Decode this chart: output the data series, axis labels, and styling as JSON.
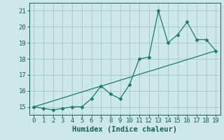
{
  "x": [
    0,
    1,
    2,
    3,
    4,
    5,
    6,
    7,
    8,
    9,
    10,
    11,
    12,
    13,
    14,
    15,
    16,
    17,
    18,
    19
  ],
  "y_main": [
    15.0,
    14.9,
    14.8,
    14.9,
    15.0,
    15.0,
    15.5,
    16.3,
    15.8,
    15.5,
    16.4,
    18.0,
    18.1,
    21.0,
    19.0,
    19.5,
    20.3,
    19.2,
    19.2,
    18.5
  ],
  "y_trend": [
    15.0,
    15.18,
    15.37,
    15.55,
    15.74,
    15.92,
    16.11,
    16.29,
    16.47,
    16.66,
    16.84,
    17.03,
    17.21,
    17.39,
    17.58,
    17.76,
    17.95,
    18.13,
    18.32,
    18.5
  ],
  "line_color": "#1a7a6e",
  "marker": "D",
  "markersize": 2.5,
  "xlabel": "Humidex (Indice chaleur)",
  "ylim": [
    14.5,
    21.5
  ],
  "xlim": [
    -0.5,
    19.5
  ],
  "yticks": [
    15,
    16,
    17,
    18,
    19,
    20,
    21
  ],
  "xticks": [
    0,
    1,
    2,
    3,
    4,
    5,
    6,
    7,
    8,
    9,
    10,
    11,
    12,
    13,
    14,
    15,
    16,
    17,
    18,
    19
  ],
  "bg_color": "#cce8e8",
  "grid_color": "#aacccc",
  "font_color": "#1a5c5c",
  "tick_fontsize": 6.5,
  "xlabel_fontsize": 7.5
}
